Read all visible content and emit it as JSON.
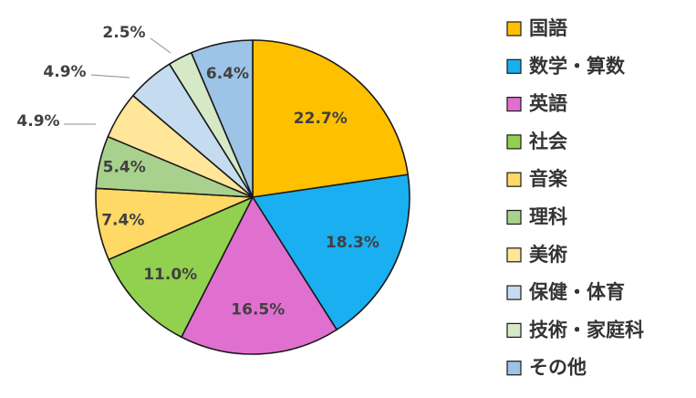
{
  "chart_data": {
    "type": "pie",
    "categories": [
      "国語",
      "数学・算数",
      "英語",
      "社会",
      "音楽",
      "理科",
      "美術",
      "保健・体育",
      "技術・家庭科",
      "その他"
    ],
    "values": [
      22.7,
      18.3,
      16.5,
      11.0,
      7.4,
      5.4,
      4.9,
      4.9,
      2.5,
      6.4
    ],
    "data_labels": [
      "22.7%",
      "18.3%",
      "16.5%",
      "11.0%",
      "7.4%",
      "5.4%",
      "4.9%",
      "4.9%",
      "2.5%",
      "6.4%"
    ],
    "colors": [
      "#FFC000",
      "#1AAFF0",
      "#E070D0",
      "#92D050",
      "#FFD966",
      "#A9D18E",
      "#FFE699",
      "#C5DCF0",
      "#D6E9C6",
      "#9DC3E6"
    ],
    "legend_position": "right",
    "title": ""
  }
}
